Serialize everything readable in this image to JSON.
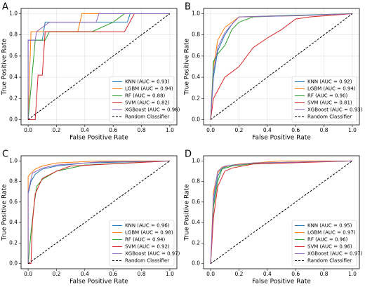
{
  "chart_data": [
    {
      "type": "line",
      "label": "A",
      "xlabel": "False Positive Rate",
      "ylabel": "True Positive Rate",
      "xlim": [
        -0.05,
        1.05
      ],
      "ylim": [
        -0.05,
        1.05
      ],
      "xticks": [
        {
          "value": 0,
          "label": "0.0"
        },
        0.2,
        0.4,
        0.6,
        0.8,
        {
          "value": 1,
          "label": "1.0"
        }
      ],
      "yticks": [
        {
          "value": 0,
          "label": "0.0"
        },
        0.2,
        0.4,
        0.6,
        0.8,
        {
          "value": 1,
          "label": "1.0"
        }
      ],
      "grid": true,
      "legend": "lower right",
      "series": [
        {
          "name": "KNN (AUC = 0.93)",
          "color": "#1f77b4",
          "x": [
            0,
            0,
            0.1,
            0.12,
            0.7,
            0.72,
            1
          ],
          "values": [
            0,
            0.75,
            0.75,
            0.92,
            0.92,
            1,
            1
          ]
        },
        {
          "name": "LGBM (AUC = 0.94)",
          "color": "#ff7f0e",
          "x": [
            0,
            0.02,
            0.35,
            0.38,
            1
          ],
          "values": [
            0,
            0.83,
            0.83,
            1,
            1
          ]
        },
        {
          "name": "RF (AUC = 0.88)",
          "color": "#2ca02c",
          "x": [
            0,
            0.05,
            0.12,
            0.15,
            0.45,
            0.6,
            0.68,
            1
          ],
          "values": [
            0,
            0.75,
            0.75,
            0.83,
            0.83,
            0.92,
            1,
            1
          ]
        },
        {
          "name": "SVM (AUC = 0.82)",
          "color": "#d62728",
          "x": [
            0,
            0.05,
            0.07,
            0.1,
            0.12,
            0.68,
            0.75,
            1
          ],
          "values": [
            0,
            0,
            0.42,
            0.42,
            0.83,
            0.83,
            1,
            1
          ]
        },
        {
          "name": "XGBoost (AUC = 0.96)",
          "color": "#9467bd",
          "x": [
            0,
            0,
            0.05,
            0.06,
            0.15,
            0.48,
            0.5,
            1
          ],
          "values": [
            0,
            0.75,
            0.75,
            0.83,
            0.92,
            0.92,
            1,
            1
          ]
        },
        {
          "name": "Random Classifier",
          "color": "#000000",
          "linestyle": "dashed",
          "x": [
            0,
            1
          ],
          "values": [
            0,
            1
          ]
        }
      ]
    },
    {
      "type": "line",
      "label": "B",
      "xlabel": "False Positive Rate",
      "ylabel": "True Positive Rate",
      "xlim": [
        -0.05,
        1.05
      ],
      "ylim": [
        -0.05,
        1.05
      ],
      "xticks": [
        {
          "value": 0,
          "label": "0.0"
        },
        0.2,
        0.4,
        0.6,
        0.8,
        {
          "value": 1,
          "label": "1.0"
        }
      ],
      "yticks": [
        {
          "value": 0,
          "label": "0.0"
        },
        0.2,
        0.4,
        0.6,
        0.8,
        {
          "value": 1,
          "label": "1.0"
        }
      ],
      "grid": true,
      "legend": "lower right",
      "series": [
        {
          "name": "KNN (AUC = 0.92)",
          "color": "#1f77b4",
          "x": [
            0,
            0.02,
            0.05,
            0.1,
            0.15,
            0.2,
            1
          ],
          "values": [
            0,
            0.4,
            0.65,
            0.8,
            0.9,
            0.97,
            1
          ]
        },
        {
          "name": "LGBM (AUC = 0.94)",
          "color": "#ff7f0e",
          "x": [
            0,
            0.02,
            0.05,
            0.1,
            0.15,
            0.2,
            0.6,
            1
          ],
          "values": [
            0,
            0.5,
            0.75,
            0.87,
            0.92,
            0.97,
            0.98,
            1
          ]
        },
        {
          "name": "RF (AUC = 0.90)",
          "color": "#2ca02c",
          "x": [
            0,
            0.02,
            0.05,
            0.1,
            0.15,
            0.2,
            0.3,
            1
          ],
          "values": [
            0,
            0.55,
            0.62,
            0.7,
            0.85,
            0.92,
            0.97,
            1
          ]
        },
        {
          "name": "SVM (AUC = 0.81)",
          "color": "#d62728",
          "x": [
            0,
            0.02,
            0.1,
            0.2,
            0.3,
            0.4,
            0.5,
            0.6,
            0.7,
            1
          ],
          "values": [
            0,
            0.2,
            0.4,
            0.5,
            0.68,
            0.77,
            0.85,
            0.95,
            0.97,
            1
          ]
        },
        {
          "name": "XGBoost (AUC = 0.93)",
          "color": "#9467bd",
          "x": [
            0,
            0.02,
            0.05,
            0.1,
            0.15,
            0.2,
            0.6,
            1
          ],
          "values": [
            0,
            0.45,
            0.68,
            0.82,
            0.9,
            0.97,
            0.98,
            1
          ]
        },
        {
          "name": "Random Classifier",
          "color": "#000000",
          "linestyle": "dashed",
          "x": [
            0,
            1
          ],
          "values": [
            0,
            1
          ]
        }
      ]
    },
    {
      "type": "line",
      "label": "C",
      "xlabel": "False Positive Rate",
      "ylabel": "True Positive Rate",
      "xlim": [
        -0.05,
        1.05
      ],
      "ylim": [
        -0.05,
        1.05
      ],
      "xticks": [
        {
          "value": 0,
          "label": "0.0"
        },
        0.2,
        0.4,
        0.6,
        0.8,
        {
          "value": 1,
          "label": "1.0"
        }
      ],
      "yticks": [
        {
          "value": 0,
          "label": "0.0"
        },
        0.2,
        0.4,
        0.6,
        0.8,
        {
          "value": 1,
          "label": "1.0"
        }
      ],
      "grid": false,
      "legend": "lower right",
      "series": [
        {
          "name": "KNN (AUC = 0.96)",
          "color": "#1f77b4",
          "x": [
            0,
            0,
            0.02,
            0.05,
            0.1,
            0.2,
            0.4,
            1
          ],
          "values": [
            0,
            0.68,
            0.8,
            0.87,
            0.92,
            0.95,
            0.98,
            1
          ]
        },
        {
          "name": "LGBM (AUC = 0.98)",
          "color": "#ff7f0e",
          "x": [
            0,
            0,
            0.02,
            0.05,
            0.1,
            0.2,
            0.5,
            1
          ],
          "values": [
            0,
            0.85,
            0.88,
            0.92,
            0.95,
            0.98,
            1,
            1
          ]
        },
        {
          "name": "RF (AUC = 0.94)",
          "color": "#2ca02c",
          "x": [
            0,
            0.02,
            0.04,
            0.06,
            0.1,
            0.2,
            0.4,
            1
          ],
          "values": [
            0,
            0.3,
            0.55,
            0.75,
            0.82,
            0.9,
            0.96,
            1
          ]
        },
        {
          "name": "SVM (AUC = 0.92)",
          "color": "#d62728",
          "x": [
            0,
            0.02,
            0.03,
            0.05,
            0.1,
            0.2,
            0.3,
            1
          ],
          "values": [
            0,
            0,
            0.4,
            0.68,
            0.83,
            0.9,
            0.95,
            1
          ]
        },
        {
          "name": "XGBoost (AUC = 0.97)",
          "color": "#9467bd",
          "x": [
            0,
            0,
            0.03,
            0.1,
            0.2,
            0.5,
            1
          ],
          "values": [
            0,
            0.7,
            0.88,
            0.93,
            0.96,
            0.99,
            1
          ]
        },
        {
          "name": "Random Classifier",
          "color": "#000000",
          "linestyle": "dashed",
          "x": [
            0,
            1
          ],
          "values": [
            0,
            1
          ]
        }
      ]
    },
    {
      "type": "line",
      "label": "D",
      "xlabel": "False Positive Rate",
      "ylabel": "True Positive Rate",
      "xlim": [
        -0.05,
        1.05
      ],
      "ylim": [
        -0.05,
        1.05
      ],
      "xticks": [
        {
          "value": 0,
          "label": "0.0"
        },
        0.2,
        0.4,
        0.6,
        0.8,
        {
          "value": 1,
          "label": "1.0"
        }
      ],
      "yticks": [
        {
          "value": 0,
          "label": "0.0"
        },
        0.2,
        0.4,
        0.6,
        0.8,
        {
          "value": 1,
          "label": "1.0"
        }
      ],
      "grid": false,
      "legend": "lower right",
      "series": [
        {
          "name": "KNN (AUC = 0.95)",
          "color": "#1f77b4",
          "x": [
            0,
            0.02,
            0.05,
            0.08,
            0.15,
            0.3,
            1
          ],
          "values": [
            0,
            0.6,
            0.85,
            0.93,
            0.96,
            0.98,
            1
          ]
        },
        {
          "name": "LGBM (AUC = 0.97)",
          "color": "#ff7f0e",
          "x": [
            0,
            0.02,
            0.05,
            0.08,
            0.2,
            0.5,
            1
          ],
          "values": [
            0,
            0.7,
            0.88,
            0.94,
            0.97,
            1,
            1
          ]
        },
        {
          "name": "RF (AUC = 0.96)",
          "color": "#2ca02c",
          "x": [
            0,
            0.02,
            0.05,
            0.08,
            0.15,
            0.35,
            1
          ],
          "values": [
            0,
            0.55,
            0.8,
            0.92,
            0.95,
            0.98,
            1
          ]
        },
        {
          "name": "SVM (AUC = 0.96)",
          "color": "#d62728",
          "x": [
            0,
            0.02,
            0.05,
            0.1,
            0.15,
            0.3,
            1
          ],
          "values": [
            0,
            0.45,
            0.75,
            0.9,
            0.93,
            0.97,
            1
          ]
        },
        {
          "name": "XGBoost (AUC = 0.97)",
          "color": "#9467bd",
          "x": [
            0,
            0.02,
            0.05,
            0.1,
            0.3,
            1
          ],
          "values": [
            0,
            0.65,
            0.9,
            0.95,
            0.98,
            1
          ]
        },
        {
          "name": "Random Classifier",
          "color": "#000000",
          "linestyle": "dashed",
          "x": [
            0,
            1
          ],
          "values": [
            0,
            1
          ]
        }
      ]
    }
  ]
}
